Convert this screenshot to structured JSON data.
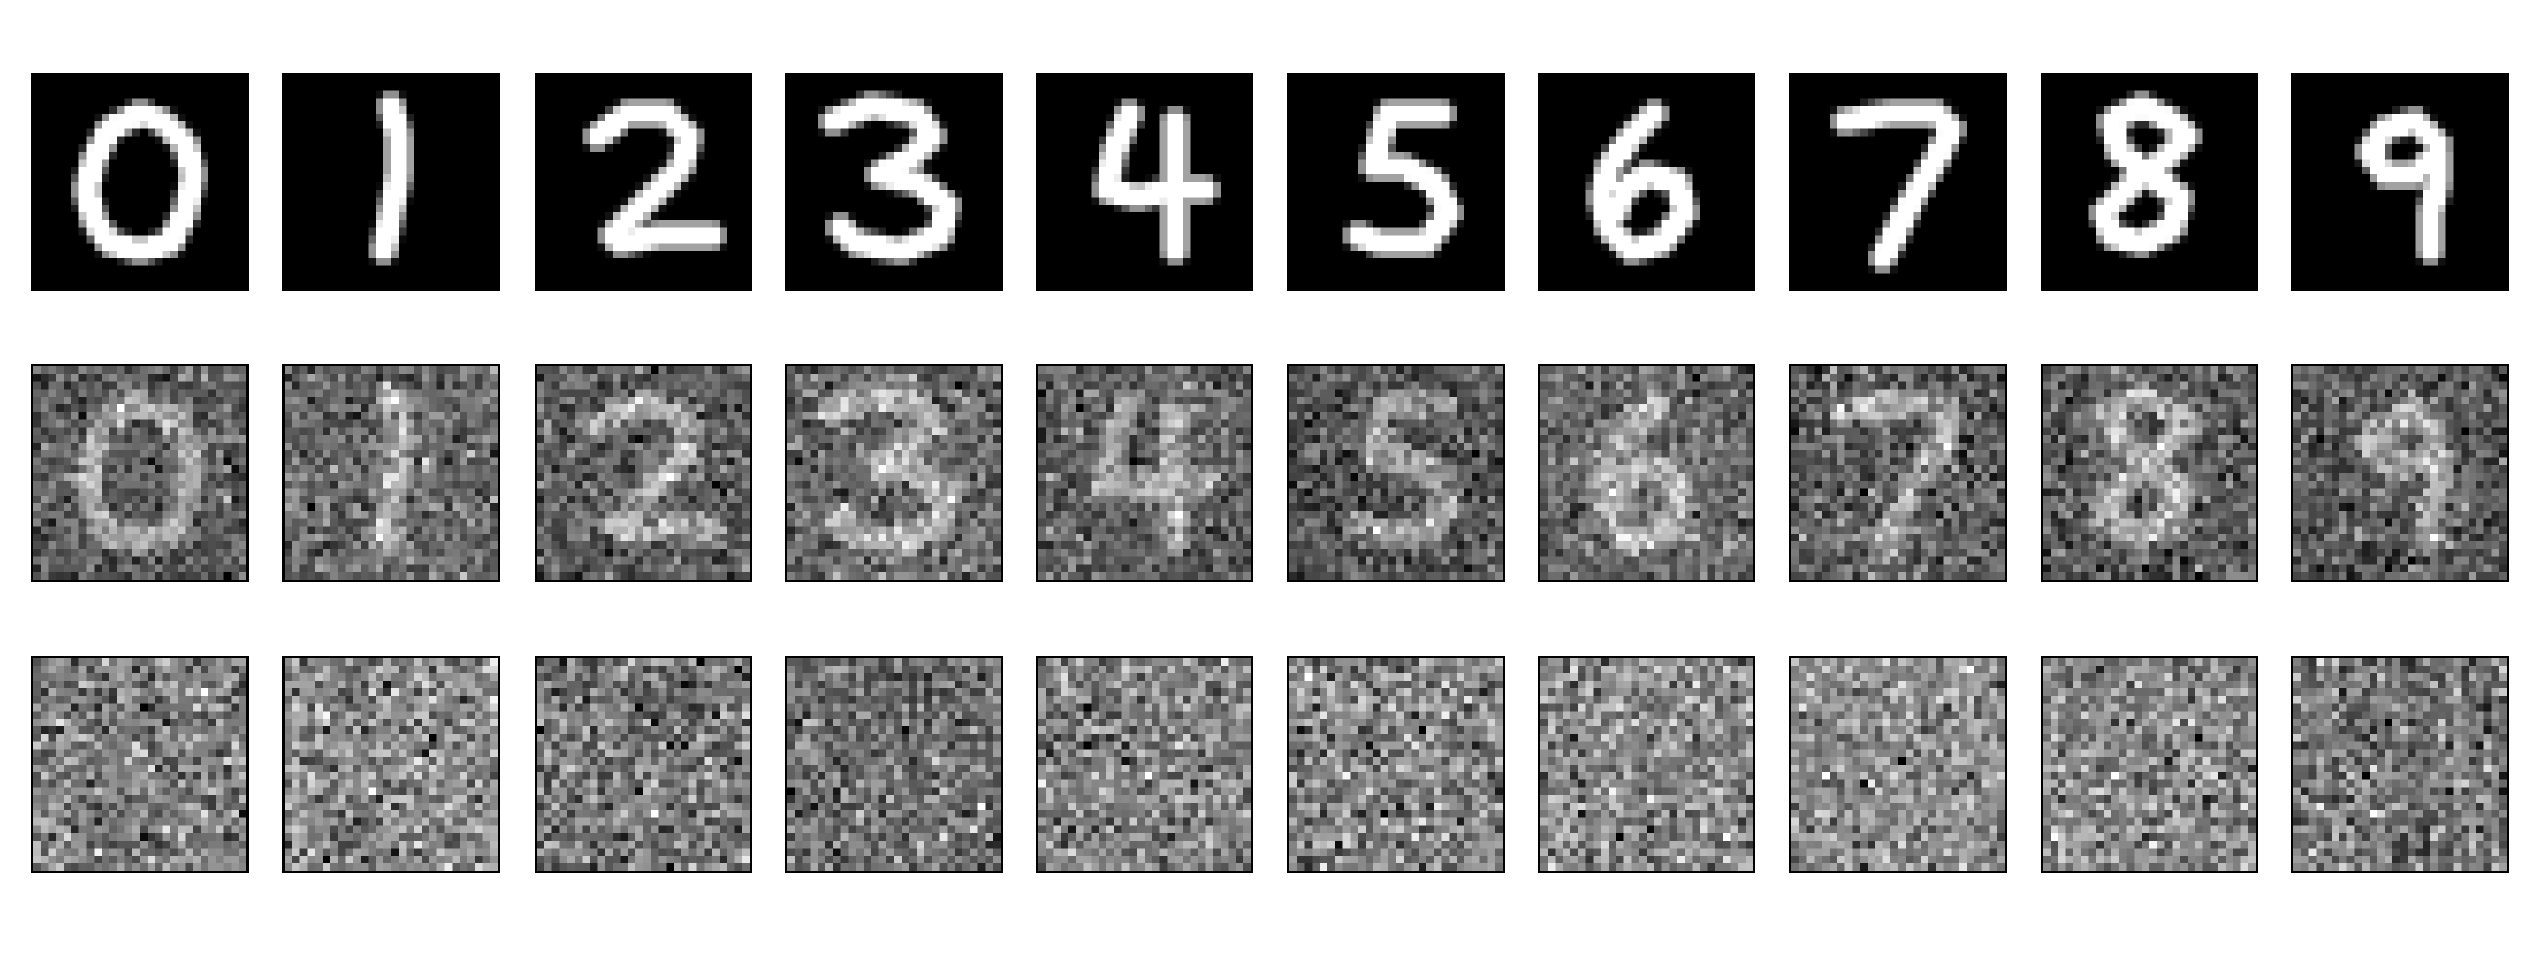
{
  "figure": {
    "description_rows": [
      "clean",
      "noisy",
      "pure-noise"
    ],
    "digits": [
      "0",
      "1",
      "2",
      "3",
      "4",
      "5",
      "6",
      "7",
      "8",
      "9"
    ],
    "noise_levels": [
      0.0,
      0.5,
      1.0
    ],
    "image_resolution": 28,
    "colormap": "gray",
    "background_color": "#ffffff",
    "frame_color": "#000000"
  }
}
